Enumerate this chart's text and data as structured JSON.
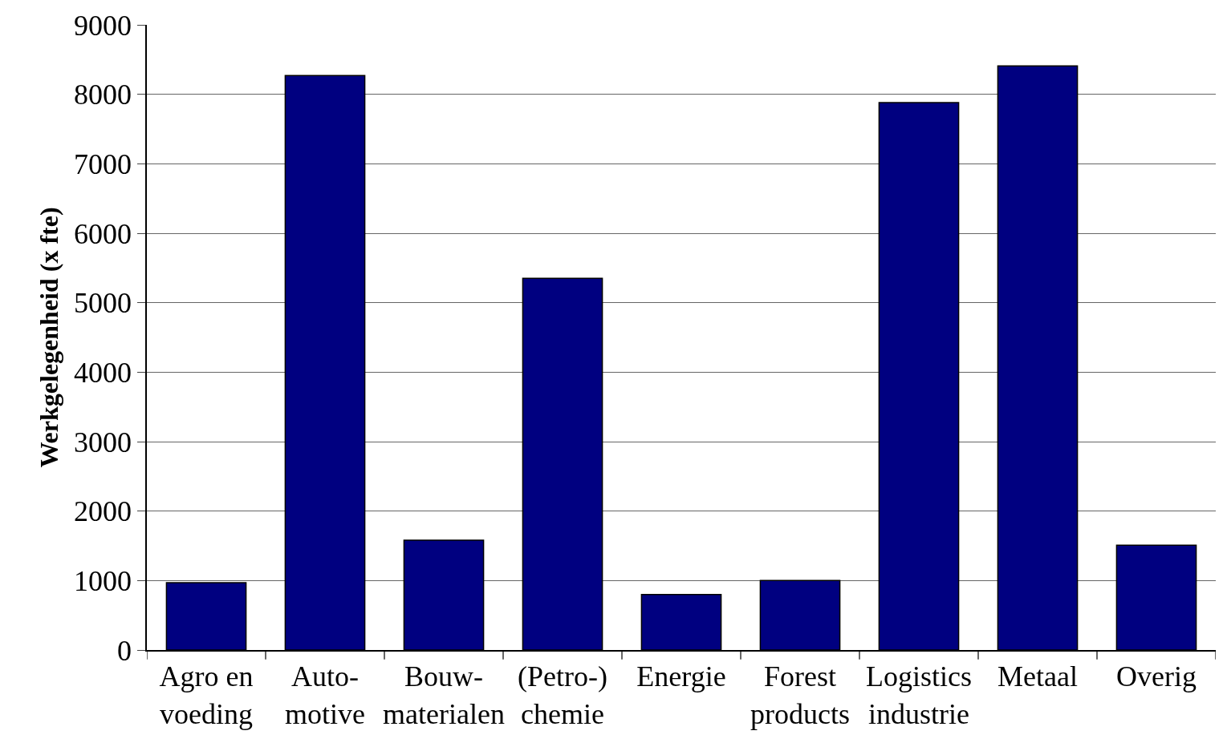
{
  "chart_data": {
    "type": "bar",
    "ylabel": "Werkgelegenheid (x fte)",
    "categories": [
      "Agro en\nvoeding",
      "Auto-\nmotive",
      "Bouw-\nmaterialen",
      "(Petro-)\nchemie",
      "Energie",
      "Forest\nproducts",
      "Logistics\nindustrie",
      "Metaal",
      "Overig"
    ],
    "values": [
      970,
      8270,
      1580,
      5350,
      800,
      1000,
      7880,
      8410,
      1510
    ],
    "color": "#000080",
    "ylim": [
      0,
      9000
    ],
    "yticks": [
      0,
      1000,
      2000,
      3000,
      4000,
      5000,
      6000,
      7000,
      8000,
      9000
    ],
    "grid": "y"
  }
}
